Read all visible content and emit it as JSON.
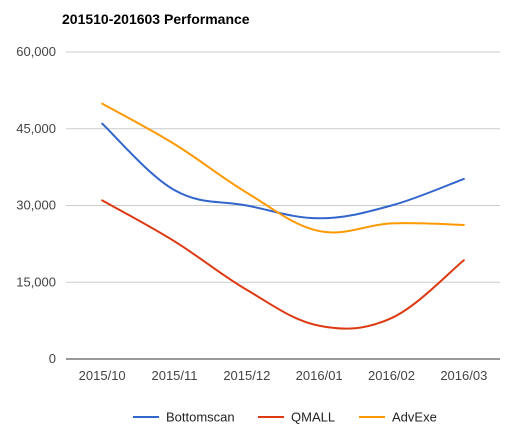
{
  "chart_data": {
    "type": "line",
    "title": "201510-201603 Performance",
    "xlabel": "",
    "ylabel": "",
    "categories": [
      "2015/10",
      "2015/11",
      "2015/12",
      "2016/01",
      "2016/02",
      "2016/03"
    ],
    "ylim": [
      0,
      60000
    ],
    "yticks": [
      0,
      15000,
      30000,
      45000,
      60000
    ],
    "ytick_labels": [
      "0",
      "15,000",
      "30,000",
      "45,000",
      "60,000"
    ],
    "grid": true,
    "legend": "bottom",
    "series": [
      {
        "name": "Bottomscan",
        "color": "#3366cc",
        "values": [
          46000,
          33000,
          30000,
          27500,
          30000,
          35200
        ]
      },
      {
        "name": "QMALL",
        "color": "#dc3912",
        "values": [
          31000,
          23000,
          13500,
          6500,
          8000,
          19300
        ]
      },
      {
        "name": "AdvExe",
        "color": "#ff9900",
        "values": [
          49900,
          42000,
          32500,
          25000,
          26500,
          26200
        ]
      }
    ]
  }
}
